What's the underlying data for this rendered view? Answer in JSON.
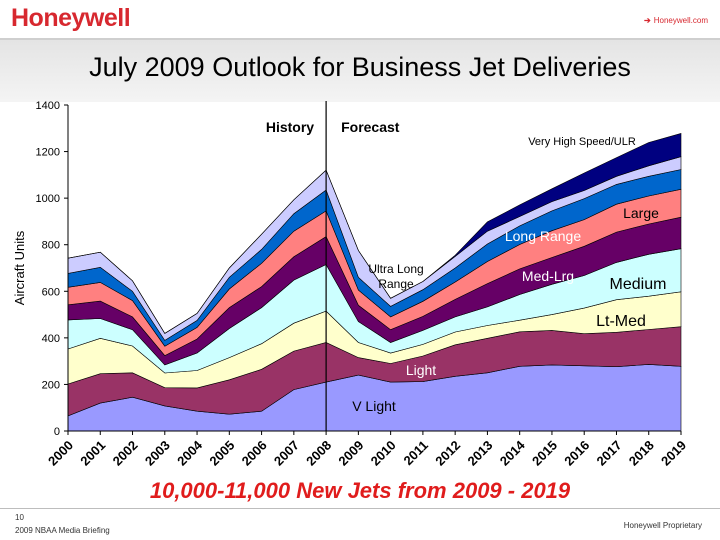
{
  "header": {
    "logo_text": "Honeywell",
    "link_text": "Honeywell.com",
    "brand_color": "#d7282f"
  },
  "slide": {
    "title": "July 2009 Outlook for Business Jet Deliveries",
    "subtitle": "10,000-11,000 New Jets from 2009 - 2019",
    "page_number": "10",
    "event": "2009 NBAA Media Briefing",
    "proprietary": "Honeywell Proprietary"
  },
  "chart_data": {
    "type": "area",
    "stacked": true,
    "x": [
      "2000",
      "2001",
      "2002",
      "2003",
      "2004",
      "2005",
      "2006",
      "2007",
      "2008",
      "2009",
      "2010",
      "2011",
      "2012",
      "2013",
      "2014",
      "2015",
      "2016",
      "2017",
      "2018",
      "2019"
    ],
    "ylabel": "Aircraft Units",
    "ylim": [
      0,
      1400
    ],
    "yticks": [
      0,
      200,
      400,
      600,
      800,
      1000,
      1200,
      1400
    ],
    "divider_x": "2008",
    "region_labels": [
      "History",
      "Forecast"
    ],
    "series": [
      {
        "name": "V Light",
        "color": "#9999ff",
        "values": [
          65,
          120,
          145,
          108,
          85,
          72,
          85,
          178,
          210,
          240,
          210,
          212,
          235,
          250,
          278,
          284,
          280,
          276,
          286,
          278
        ]
      },
      {
        "name": "Light",
        "color": "#993366",
        "values": [
          137,
          126,
          105,
          78,
          100,
          148,
          180,
          165,
          170,
          75,
          80,
          110,
          135,
          148,
          148,
          148,
          138,
          148,
          150,
          170
        ]
      },
      {
        "name": "Lt-Med",
        "color": "#ffffcc",
        "values": [
          150,
          152,
          115,
          63,
          75,
          95,
          110,
          120,
          135,
          65,
          45,
          50,
          55,
          55,
          50,
          68,
          110,
          140,
          143,
          150
        ]
      },
      {
        "name": "Medium",
        "color": "#ccffff",
        "values": [
          125,
          85,
          70,
          35,
          75,
          125,
          155,
          185,
          200,
          90,
          45,
          60,
          65,
          80,
          110,
          130,
          140,
          160,
          180,
          185
        ]
      },
      {
        "name": "Med-Lrg",
        "color": "#660066",
        "values": [
          65,
          75,
          55,
          40,
          60,
          90,
          90,
          100,
          120,
          70,
          55,
          60,
          75,
          100,
          110,
          115,
          125,
          130,
          130,
          135
        ]
      },
      {
        "name": "Large",
        "color": "#ff8080",
        "values": [
          75,
          80,
          70,
          40,
          50,
          80,
          100,
          110,
          110,
          65,
          55,
          65,
          75,
          95,
          105,
          115,
          115,
          120,
          120,
          120
        ]
      },
      {
        "name": "Long Range",
        "color": "#0066cc",
        "values": [
          60,
          65,
          40,
          25,
          30,
          50,
          60,
          75,
          90,
          55,
          45,
          50,
          60,
          75,
          80,
          85,
          90,
          85,
          85,
          85
        ]
      },
      {
        "name": "Ultra Long Range",
        "color": "#ccccff",
        "values": [
          65,
          65,
          45,
          30,
          30,
          40,
          65,
          60,
          85,
          115,
          35,
          35,
          50,
          55,
          40,
          40,
          35,
          35,
          45,
          55
        ]
      },
      {
        "name": "Very High Speed/ULR",
        "color": "#000080",
        "values": [
          0,
          0,
          0,
          0,
          0,
          0,
          0,
          0,
          0,
          0,
          0,
          0,
          5,
          40,
          50,
          55,
          75,
          80,
          100,
          100
        ]
      }
    ]
  }
}
